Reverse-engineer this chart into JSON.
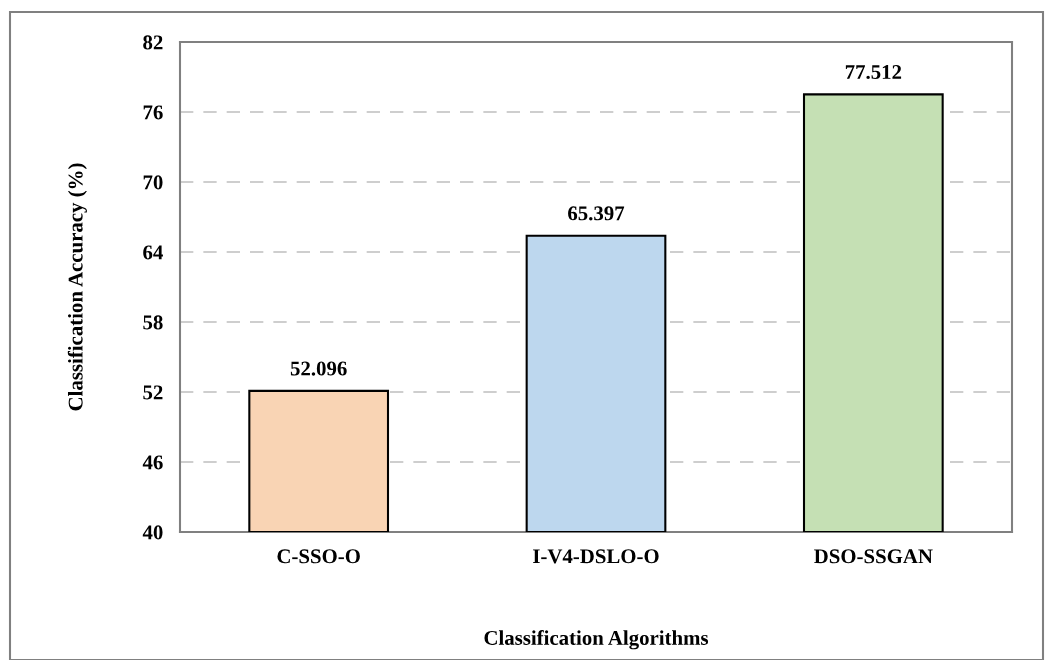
{
  "chart_data": {
    "type": "bar",
    "xlabel": "Classification Algorithms",
    "ylabel": "Classification Accuracy (%)",
    "categories": [
      "C-SSO-O",
      "I-V4-DSLO-O",
      "DSO-SSGAN"
    ],
    "values": [
      52.096,
      65.397,
      77.512
    ],
    "colors": [
      "#f9d4b4",
      "#bdd7ee",
      "#c5e0b4"
    ],
    "ylim": [
      40,
      82
    ],
    "yticks": [
      40,
      46,
      52,
      58,
      64,
      70,
      76,
      82
    ],
    "grid": "y",
    "data_labels": true
  }
}
